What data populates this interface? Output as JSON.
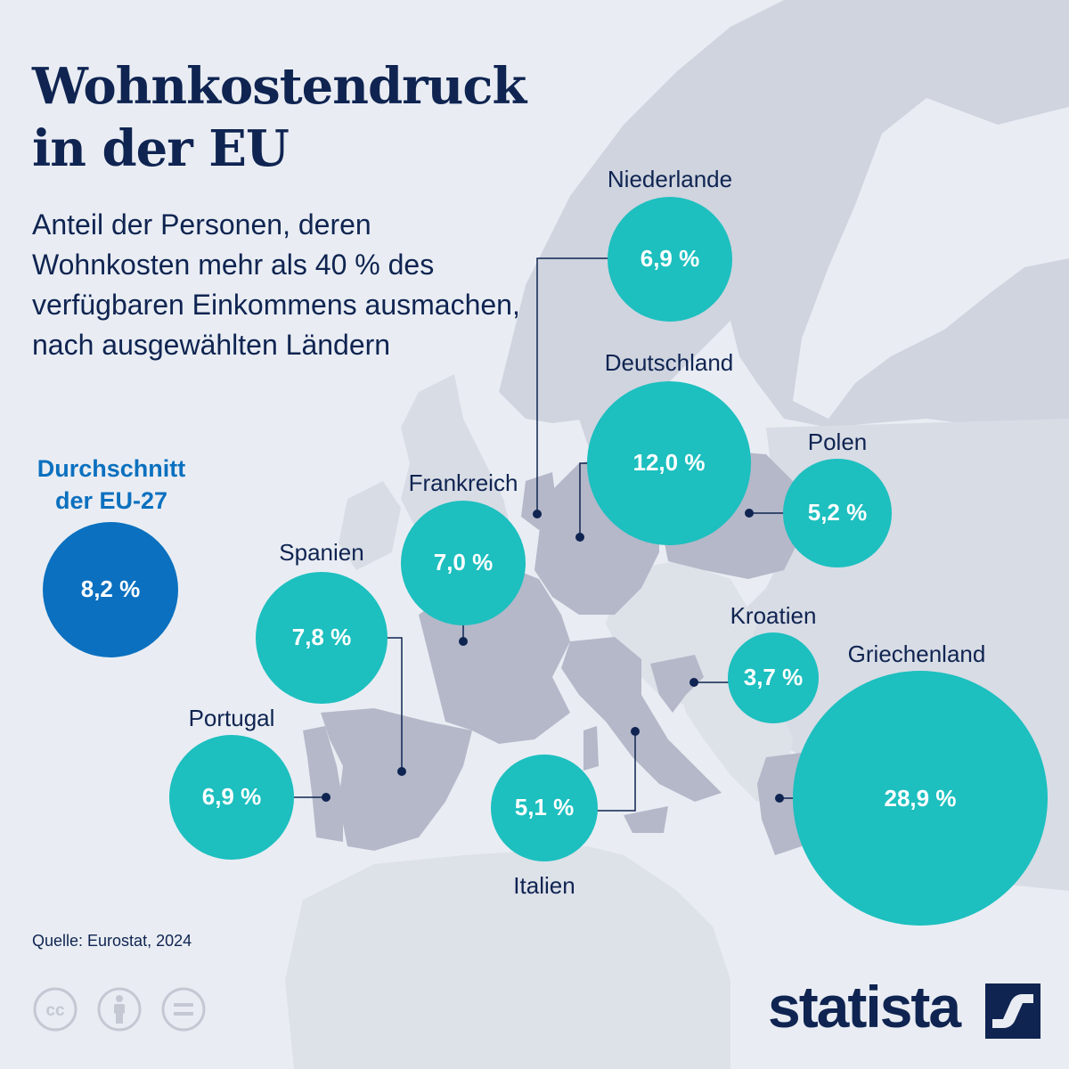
{
  "title_line1": "Wohnkostendruck",
  "title_line2": "in der EU",
  "subtitle": "Anteil der Personen, deren Wohnkosten mehr als 40 % des verfügbaren Einkommens ausmachen, nach ausgewählten Ländern",
  "average": {
    "label_line1": "Durchschnitt",
    "label_line2": "der EU-27",
    "value_text": "8,2 %",
    "value": 8.2,
    "color": "#0b70bf"
  },
  "bubble_color": "#1dbfbf",
  "countries": [
    {
      "name": "Niederlande",
      "value": 6.9,
      "value_text": "6,9 %"
    },
    {
      "name": "Deutschland",
      "value": 12.0,
      "value_text": "12,0 %"
    },
    {
      "name": "Polen",
      "value": 5.2,
      "value_text": "5,2 %"
    },
    {
      "name": "Frankreich",
      "value": 7.0,
      "value_text": "7,0 %"
    },
    {
      "name": "Spanien",
      "value": 7.8,
      "value_text": "7,8 %"
    },
    {
      "name": "Kroatien",
      "value": 3.7,
      "value_text": "3,7 %"
    },
    {
      "name": "Griechenland",
      "value": 28.9,
      "value_text": "28,9 %"
    },
    {
      "name": "Portugal",
      "value": 6.9,
      "value_text": "6,9 %"
    },
    {
      "name": "Italien",
      "value": 5.1,
      "value_text": "5,1 %"
    }
  ],
  "source": "Quelle: Eurostat, 2024",
  "brand": "statista",
  "license_icons": [
    "cc-icon",
    "attribution-icon",
    "no-derivatives-icon"
  ]
}
